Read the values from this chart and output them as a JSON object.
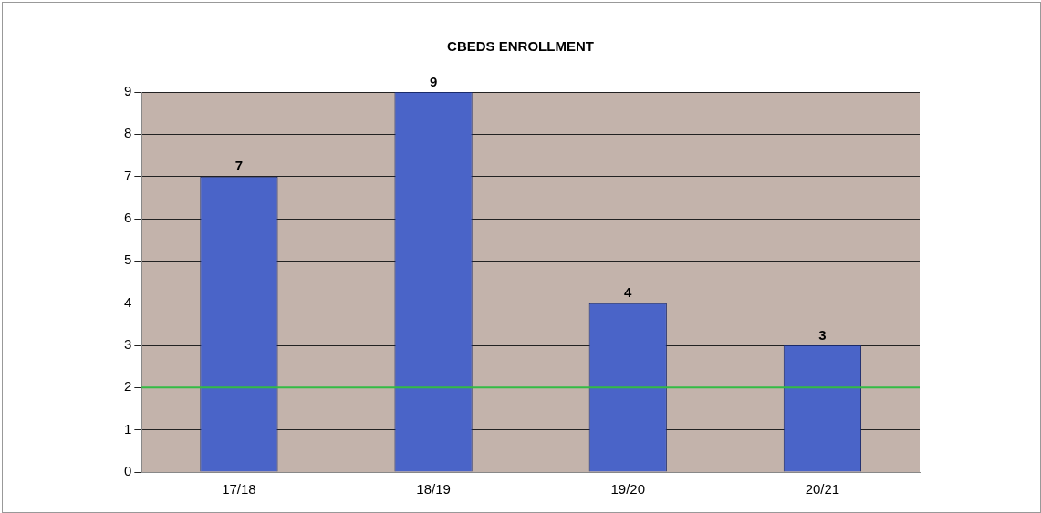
{
  "chart_data": {
    "type": "bar",
    "title": "CBEDS ENROLLMENT",
    "categories": [
      "17/18",
      "18/19",
      "19/20",
      "20/21"
    ],
    "values": [
      7,
      9,
      4,
      3
    ],
    "color": "#4a64c8",
    "ylim": [
      0,
      9
    ],
    "yticks": [
      0,
      1,
      2,
      3,
      4,
      5,
      6,
      7,
      8,
      9
    ],
    "grid": "y",
    "data_labels": true,
    "legend": false,
    "ref_lines": [
      {
        "axis": "y",
        "value": 2,
        "color": "#33bb44"
      }
    ]
  }
}
